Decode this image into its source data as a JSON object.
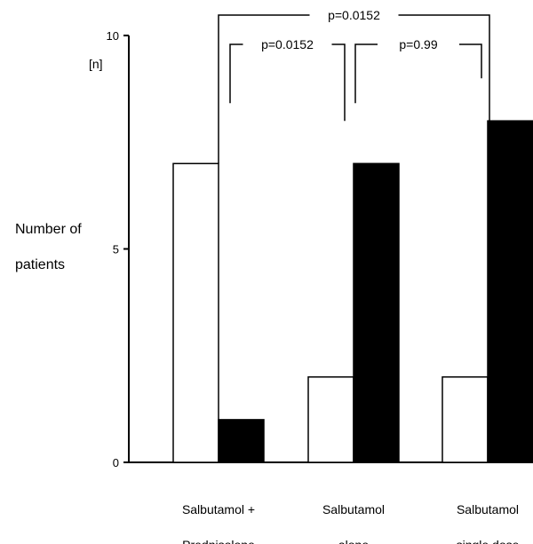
{
  "chart_data": {
    "type": "bar",
    "categories": [
      [
        "Salbutamol +",
        "Prednisolone"
      ],
      [
        "Salbutamol",
        "alone"
      ],
      [
        "Salbutamol",
        "single dose"
      ]
    ],
    "series": [
      {
        "values": [
          7,
          2,
          2
        ],
        "color": "#ffffff"
      },
      {
        "values": [
          1,
          7,
          8
        ],
        "color": "#000000"
      }
    ],
    "ylim": [
      0,
      10
    ],
    "yticks": [
      0,
      5,
      10
    ],
    "ylabel": [
      "Number of",
      "patients"
    ],
    "yunit": "[n]",
    "annotations": [
      {
        "label": "p=0.0152",
        "from": 0,
        "to": 2
      },
      {
        "label": "p=0.0152",
        "from": 0,
        "to": 1
      },
      {
        "label": "p=0.99",
        "from": 1,
        "to": 2
      }
    ],
    "grid": false,
    "legend": "none"
  }
}
